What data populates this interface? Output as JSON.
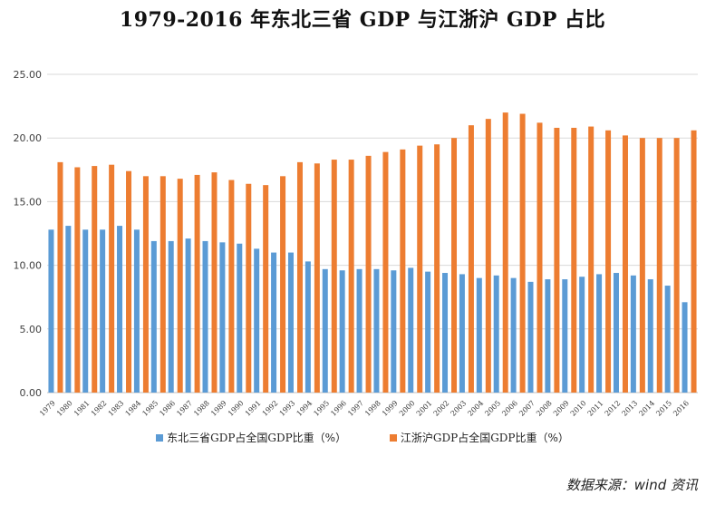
{
  "title": "1979-2016 年东北三省 GDP 与江浙沪 GDP 占比",
  "source": "数据来源：wind 资讯",
  "chart_data": {
    "type": "bar",
    "categories": [
      "1979",
      "1980",
      "1981",
      "1982",
      "1983",
      "1984",
      "1985",
      "1986",
      "1987",
      "1988",
      "1989",
      "1990",
      "1991",
      "1992",
      "1993",
      "1994",
      "1995",
      "1996",
      "1997",
      "1998",
      "1999",
      "2000",
      "2001",
      "2002",
      "2003",
      "2004",
      "2005",
      "2006",
      "2007",
      "2008",
      "2009",
      "2010",
      "2011",
      "2012",
      "2013",
      "2014",
      "2015",
      "2016"
    ],
    "series": [
      {
        "name": "东北三省GDP占全国GDP比重（%）",
        "color": "#5b9bd5",
        "values": [
          12.8,
          13.1,
          12.8,
          12.8,
          13.1,
          12.8,
          11.9,
          11.9,
          12.1,
          11.9,
          11.8,
          11.7,
          11.3,
          11.0,
          11.0,
          10.3,
          9.7,
          9.6,
          9.7,
          9.7,
          9.6,
          9.8,
          9.5,
          9.4,
          9.3,
          9.0,
          9.2,
          9.0,
          8.7,
          8.9,
          8.9,
          9.1,
          9.3,
          9.4,
          9.2,
          8.9,
          8.4,
          7.1
        ]
      },
      {
        "name": "江浙沪GDP占全国GDP比重（%）",
        "color": "#ed7d31",
        "values": [
          18.1,
          17.7,
          17.8,
          17.9,
          17.4,
          17.0,
          17.0,
          16.8,
          17.1,
          17.3,
          16.7,
          16.4,
          16.3,
          17.0,
          18.1,
          18.0,
          18.3,
          18.3,
          18.6,
          18.9,
          19.1,
          19.4,
          19.5,
          20.0,
          21.0,
          21.5,
          22.0,
          21.9,
          21.2,
          20.8,
          20.8,
          20.9,
          20.6,
          20.2,
          20.0,
          20.0,
          20.0,
          20.6
        ]
      }
    ],
    "ylim": [
      0,
      25
    ],
    "yticks": [
      "0.00",
      "5.00",
      "10.00",
      "15.00",
      "20.00",
      "25.00"
    ],
    "grid": true,
    "legend": "bottom",
    "xlabel": "",
    "ylabel": ""
  }
}
